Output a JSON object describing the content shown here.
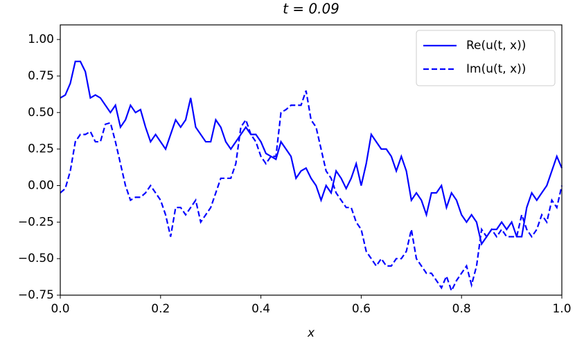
{
  "chart_data": {
    "type": "line",
    "title": "t = 0.09",
    "x_label": "x",
    "x": [
      0,
      0.01,
      0.02,
      0.03,
      0.04,
      0.05,
      0.06,
      0.07,
      0.08,
      0.09,
      0.1,
      0.11,
      0.12,
      0.13,
      0.14,
      0.15,
      0.16,
      0.17,
      0.18,
      0.19,
      0.2,
      0.21,
      0.22,
      0.23,
      0.24,
      0.25,
      0.26,
      0.27,
      0.28,
      0.29,
      0.3,
      0.31,
      0.32,
      0.33,
      0.34,
      0.35,
      0.36,
      0.37,
      0.38,
      0.39,
      0.4,
      0.41,
      0.42,
      0.43,
      0.44,
      0.45,
      0.46,
      0.47,
      0.48,
      0.49,
      0.5,
      0.51,
      0.52,
      0.53,
      0.54,
      0.55,
      0.56,
      0.57,
      0.58,
      0.59,
      0.6,
      0.61,
      0.62,
      0.63,
      0.64,
      0.65,
      0.66,
      0.67,
      0.68,
      0.69,
      0.7,
      0.71,
      0.72,
      0.73,
      0.74,
      0.75,
      0.76,
      0.77,
      0.78,
      0.79,
      0.8,
      0.81,
      0.82,
      0.83,
      0.84,
      0.85,
      0.86,
      0.87,
      0.88,
      0.89,
      0.9,
      0.91,
      0.92,
      0.93,
      0.94,
      0.95,
      0.96,
      0.97,
      0.98,
      0.99,
      1
    ],
    "series": [
      {
        "name": "Re(u(t, x))",
        "color": "#0000ff",
        "linestyle": "solid",
        "values": [
          0.6,
          0.62,
          0.7,
          0.85,
          0.85,
          0.78,
          0.6,
          0.62,
          0.6,
          0.55,
          0.5,
          0.55,
          0.4,
          0.45,
          0.55,
          0.5,
          0.52,
          0.4,
          0.3,
          0.35,
          0.3,
          0.25,
          0.35,
          0.45,
          0.4,
          0.45,
          0.6,
          0.4,
          0.35,
          0.3,
          0.3,
          0.45,
          0.4,
          0.3,
          0.25,
          0.3,
          0.35,
          0.4,
          0.35,
          0.35,
          0.3,
          0.22,
          0.2,
          0.18,
          0.3,
          0.25,
          0.2,
          0.05,
          0.1,
          0.12,
          0.05,
          0,
          -0.1,
          0,
          -0.05,
          0.1,
          0.05,
          -0.02,
          0.05,
          0.15,
          0,
          0.15,
          0.35,
          0.3,
          0.25,
          0.25,
          0.2,
          0.1,
          0.2,
          0.1,
          -0.1,
          -0.05,
          -0.1,
          -0.2,
          -0.05,
          -0.05,
          0,
          -0.15,
          -0.05,
          -0.1,
          -0.2,
          -0.25,
          -0.2,
          -0.25,
          -0.4,
          -0.35,
          -0.3,
          -0.3,
          -0.25,
          -0.3,
          -0.25,
          -0.35,
          -0.35,
          -0.15,
          -0.05,
          -0.1,
          -0.05,
          0,
          0.1,
          0.2,
          0.12
        ]
      },
      {
        "name": "Im(u(t, x))",
        "color": "#0000ff",
        "linestyle": "dashed",
        "values": [
          -0.05,
          -0.02,
          0.1,
          0.3,
          0.35,
          0.35,
          0.37,
          0.3,
          0.3,
          0.42,
          0.43,
          0.3,
          0.15,
          0,
          -0.1,
          -0.08,
          -0.08,
          -0.05,
          0,
          -0.05,
          -0.1,
          -0.2,
          -0.35,
          -0.15,
          -0.15,
          -0.2,
          -0.15,
          -0.1,
          -0.25,
          -0.2,
          -0.15,
          -0.05,
          0.05,
          0.05,
          0.05,
          0.15,
          0.4,
          0.45,
          0.35,
          0.3,
          0.2,
          0.15,
          0.2,
          0.2,
          0.5,
          0.52,
          0.55,
          0.55,
          0.55,
          0.65,
          0.45,
          0.4,
          0.25,
          0.1,
          0.05,
          -0.05,
          -0.1,
          -0.15,
          -0.15,
          -0.25,
          -0.3,
          -0.45,
          -0.5,
          -0.55,
          -0.5,
          -0.55,
          -0.55,
          -0.5,
          -0.5,
          -0.45,
          -0.3,
          -0.5,
          -0.55,
          -0.6,
          -0.6,
          -0.65,
          -0.7,
          -0.62,
          -0.72,
          -0.65,
          -0.6,
          -0.55,
          -0.68,
          -0.55,
          -0.3,
          -0.35,
          -0.3,
          -0.35,
          -0.3,
          -0.35,
          -0.35,
          -0.35,
          -0.2,
          -0.3,
          -0.35,
          -0.3,
          -0.2,
          -0.25,
          -0.1,
          -0.15,
          0
        ]
      }
    ],
    "xlim": [
      0,
      1
    ],
    "ylim": [
      -0.75,
      1.1
    ],
    "xticks": [
      {
        "value": 0,
        "label": "0.0"
      },
      0.2,
      0.4,
      0.6,
      0.8,
      {
        "value": 1,
        "label": "1.0"
      }
    ],
    "yticks": [
      {
        "value": -0.75,
        "label": "−0.75"
      },
      {
        "value": -0.5,
        "label": "−0.50"
      },
      {
        "value": -0.25,
        "label": "−0.25"
      },
      {
        "value": 0,
        "label": "0.00"
      },
      0.25,
      {
        "value": 0.5,
        "label": "0.50"
      },
      0.75,
      {
        "value": 1,
        "label": "1.00"
      }
    ],
    "legend": "upper right"
  }
}
